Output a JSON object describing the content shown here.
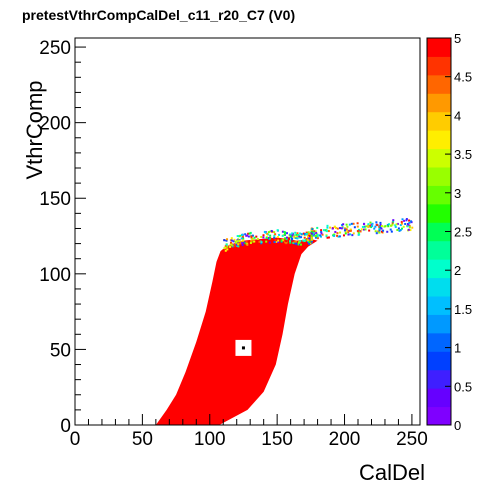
{
  "chart_data": {
    "type": "heatmap",
    "title": "pretestVthrCompCalDel_c11_r20_C7 (V0)",
    "xlabel": "CalDel",
    "ylabel": "VthrComp",
    "xlim": [
      0,
      256
    ],
    "ylim": [
      0,
      256
    ],
    "zlim": [
      0,
      5
    ],
    "x_ticks": [
      0,
      50,
      100,
      150,
      200,
      250
    ],
    "y_ticks": [
      0,
      50,
      100,
      150,
      200,
      250
    ],
    "z_ticks": [
      0,
      0.5,
      1,
      1.5,
      2,
      2.5,
      3,
      3.5,
      4,
      4.5,
      5
    ],
    "x_tick_labels": [
      "0",
      "50",
      "100",
      "150",
      "200",
      "250"
    ],
    "y_tick_labels": [
      "0",
      "50",
      "100",
      "150",
      "200",
      "250"
    ],
    "z_tick_labels": [
      "0",
      "0.5",
      "1",
      "1.5",
      "2",
      "2.5",
      "3",
      "3.5",
      "4",
      "4.5",
      "5"
    ],
    "palette": [
      "#7f00ff",
      "#6600ff",
      "#3f1fff",
      "#0040ff",
      "#0066ff",
      "#0099ff",
      "#00bfff",
      "#00ddee",
      "#00ffcc",
      "#00ff99",
      "#00ff55",
      "#22ff00",
      "#66ff00",
      "#99ff00",
      "#ccff00",
      "#ffee00",
      "#ffcc00",
      "#ff9900",
      "#ff6600",
      "#ff3300",
      "#ff0000"
    ],
    "grid": false,
    "region": {
      "description": "",
      "plateau_value": 5,
      "lower_edge": [
        [
          60,
          0
        ],
        [
          68,
          10
        ],
        [
          75,
          20
        ],
        [
          82,
          35
        ],
        [
          90,
          55
        ],
        [
          97,
          75
        ],
        [
          102,
          95
        ],
        [
          105,
          108
        ],
        [
          108,
          115
        ],
        [
          112,
          118
        ],
        [
          120,
          120
        ]
      ],
      "upper_edge": [
        [
          107,
          0
        ],
        [
          128,
          10
        ],
        [
          140,
          22
        ],
        [
          149,
          40
        ],
        [
          154,
          60
        ],
        [
          158,
          80
        ],
        [
          163,
          100
        ],
        [
          168,
          113
        ],
        [
          173,
          118
        ],
        [
          180,
          122
        ]
      ],
      "plateau_top": [
        [
          110,
          118
        ],
        [
          125,
          122
        ],
        [
          150,
          124
        ],
        [
          165,
          122
        ],
        [
          175,
          123
        ]
      ],
      "tail_top": [
        [
          175,
          126
        ],
        [
          200,
          128
        ],
        [
          225,
          130
        ],
        [
          250,
          132
        ]
      ],
      "marker": {
        "x": 125,
        "y": 51
      }
    }
  }
}
